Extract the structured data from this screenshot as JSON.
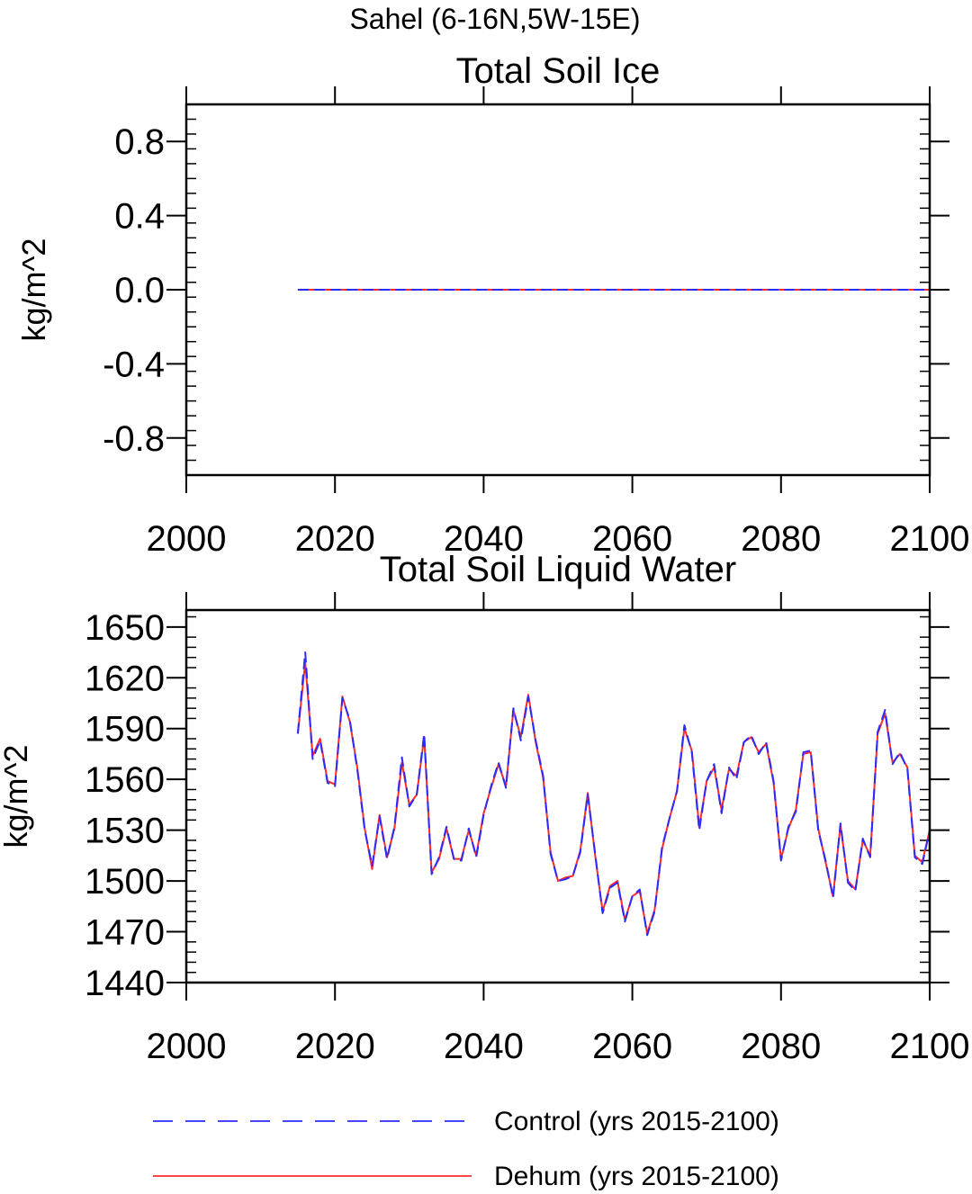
{
  "figure": {
    "supertitle": "Sahel (6-16N,5W-15E)",
    "legend": [
      {
        "label": "Control (yrs 2015-2100)",
        "color": "#2b2bff",
        "style": "dashed"
      },
      {
        "label": "Dehum (yrs 2015-2100)",
        "color": "#ff2b2b",
        "style": "solid"
      }
    ]
  },
  "chart_data": [
    {
      "type": "line",
      "title": "Total Soil Ice",
      "xlabel": "",
      "ylabel": "kg/m^2",
      "xlim": [
        2000,
        2100
      ],
      "ylim": [
        -1.0,
        1.0
      ],
      "xticks": [
        2000,
        2020,
        2040,
        2060,
        2080,
        2100
      ],
      "xtick_labels": [
        "2000",
        "2020",
        "2040",
        "2060",
        "2080",
        "2100"
      ],
      "yticks": [
        -0.8,
        -0.4,
        0.0,
        0.4,
        0.8
      ],
      "ytick_labels": [
        "-0.8",
        "-0.4",
        "0.0",
        "0.4",
        "0.8"
      ],
      "x_start": 2015,
      "x_end": 2100,
      "series": [
        {
          "name": "Control (yrs 2015-2100)",
          "color": "#2b2bff",
          "dash": true,
          "constant": 0.0
        },
        {
          "name": "Dehum (yrs 2015-2100)",
          "color": "#ff2b2b",
          "dash": false,
          "constant": 0.0
        }
      ]
    },
    {
      "type": "line",
      "title": "Total Soil Liquid Water",
      "xlabel": "",
      "ylabel": "kg/m^2",
      "xlim": [
        2000,
        2100
      ],
      "ylim": [
        1440,
        1660
      ],
      "xticks": [
        2000,
        2020,
        2040,
        2060,
        2080,
        2100
      ],
      "xtick_labels": [
        "2000",
        "2020",
        "2040",
        "2060",
        "2080",
        "2100"
      ],
      "yticks": [
        1440,
        1470,
        1500,
        1530,
        1560,
        1590,
        1620,
        1650
      ],
      "ytick_labels": [
        "1440",
        "1470",
        "1500",
        "1530",
        "1560",
        "1590",
        "1620",
        "1650"
      ],
      "x_start": 2015,
      "series": [
        {
          "name": "Control (yrs 2015-2100)",
          "color": "#2b2bff",
          "dash": true,
          "values": [
            1587,
            1635,
            1572,
            1583,
            1558,
            1556,
            1608,
            1595,
            1566,
            1530,
            1509,
            1538,
            1513,
            1532,
            1573,
            1544,
            1551,
            1587,
            1504,
            1514,
            1532,
            1513,
            1512,
            1531,
            1514,
            1539,
            1556,
            1570,
            1555,
            1602,
            1583,
            1609,
            1583,
            1562,
            1516,
            1500,
            1501,
            1503,
            1517,
            1551,
            1516,
            1481,
            1496,
            1499,
            1476,
            1491,
            1495,
            1468,
            1482,
            1520,
            1537,
            1553,
            1592,
            1576,
            1530,
            1559,
            1569,
            1540,
            1567,
            1560,
            1582,
            1586,
            1575,
            1582,
            1559,
            1512,
            1532,
            1541,
            1576,
            1577,
            1530,
            1512,
            1490,
            1534,
            1499,
            1494,
            1525,
            1514,
            1588,
            1601,
            1569,
            1576,
            1566,
            1514,
            1510,
            1530
          ]
        },
        {
          "name": "Dehum (yrs 2015-2100)",
          "color": "#ff2b2b",
          "dash": false,
          "values": [
            1587,
            1629,
            1574,
            1584,
            1559,
            1557,
            1609,
            1594,
            1567,
            1531,
            1507,
            1539,
            1514,
            1531,
            1570,
            1545,
            1551,
            1585,
            1505,
            1513,
            1531,
            1513,
            1513,
            1530,
            1515,
            1540,
            1555,
            1569,
            1556,
            1601,
            1585,
            1610,
            1582,
            1561,
            1517,
            1500,
            1502,
            1503,
            1518,
            1552,
            1515,
            1482,
            1497,
            1500,
            1477,
            1491,
            1494,
            1469,
            1483,
            1519,
            1537,
            1553,
            1590,
            1577,
            1532,
            1559,
            1567,
            1542,
            1566,
            1562,
            1582,
            1585,
            1576,
            1581,
            1558,
            1513,
            1531,
            1542,
            1575,
            1576,
            1531,
            1511,
            1491,
            1533,
            1500,
            1495,
            1524,
            1515,
            1587,
            1599,
            1570,
            1575,
            1567,
            1515,
            1511,
            1530
          ]
        }
      ]
    }
  ]
}
